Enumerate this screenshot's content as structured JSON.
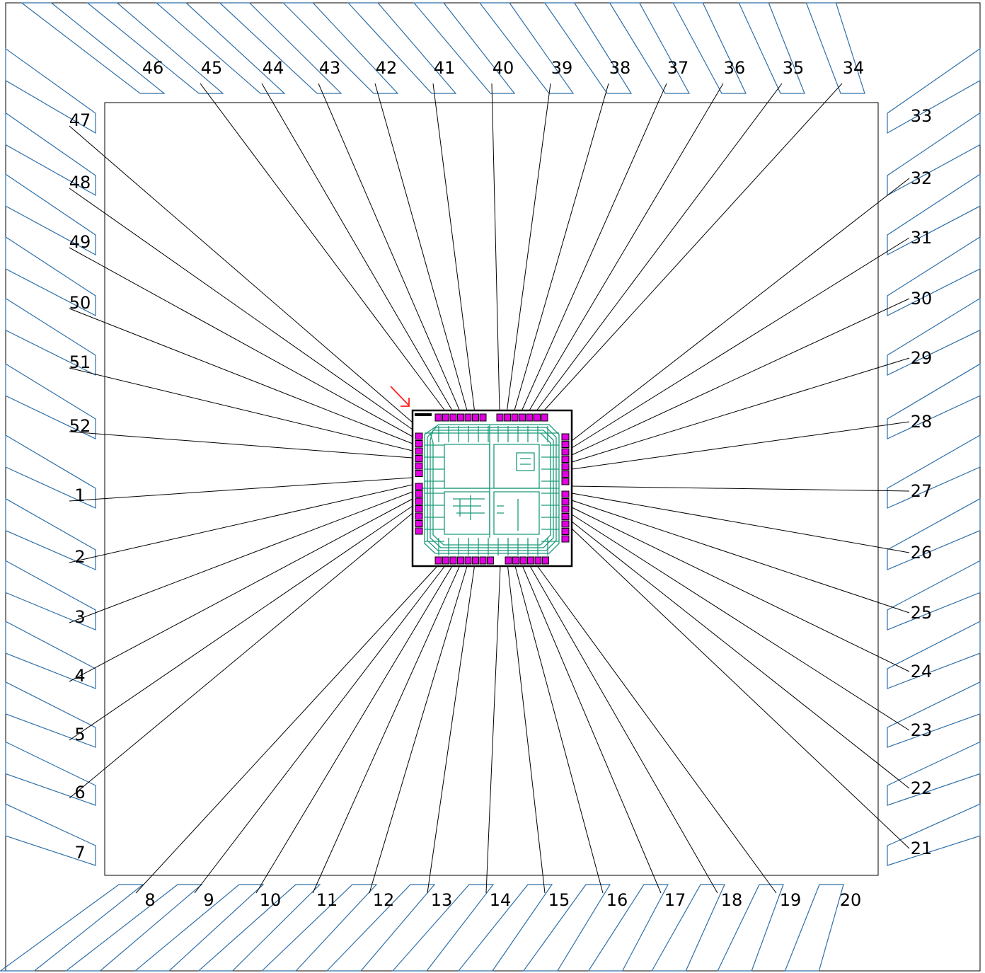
{
  "diagram": {
    "type": "bond-diagram",
    "pins": {
      "left": [
        "47",
        "48",
        "49",
        "50",
        "51",
        "52",
        "1",
        "2",
        "3",
        "4",
        "5",
        "6",
        "7"
      ],
      "bottom": [
        "8",
        "9",
        "10",
        "11",
        "12",
        "13",
        "14",
        "15",
        "16",
        "17",
        "18",
        "19",
        "20"
      ],
      "right": [
        "21",
        "22",
        "23",
        "24",
        "25",
        "26",
        "27",
        "28",
        "29",
        "30",
        "31",
        "32",
        "33"
      ],
      "top": [
        "34",
        "35",
        "36",
        "37",
        "38",
        "39",
        "40",
        "41",
        "42",
        "43",
        "44",
        "45",
        "46"
      ]
    },
    "bonded_pins": [
      "1",
      "2",
      "3",
      "4",
      "5",
      "6",
      "8",
      "9",
      "10",
      "11",
      "12",
      "13",
      "14",
      "15",
      "16",
      "17",
      "18",
      "19",
      "21",
      "22",
      "23",
      "24",
      "25",
      "26",
      "27",
      "28",
      "29",
      "30",
      "31",
      "32",
      "34",
      "35",
      "36",
      "37",
      "38",
      "39",
      "40",
      "41",
      "42",
      "43",
      "44",
      "45",
      "47",
      "48",
      "49",
      "50",
      "51",
      "52"
    ],
    "unbonded_pins": [
      "7",
      "20",
      "33",
      "46"
    ],
    "colors": {
      "lead_frame": "#2f6fa8",
      "bond_wire": "#000000",
      "die_pad": "#e000e0",
      "die_trace": "#1a9a7a",
      "marker_arrow": "#ff2020"
    },
    "marker": "pin-1-arrow"
  }
}
